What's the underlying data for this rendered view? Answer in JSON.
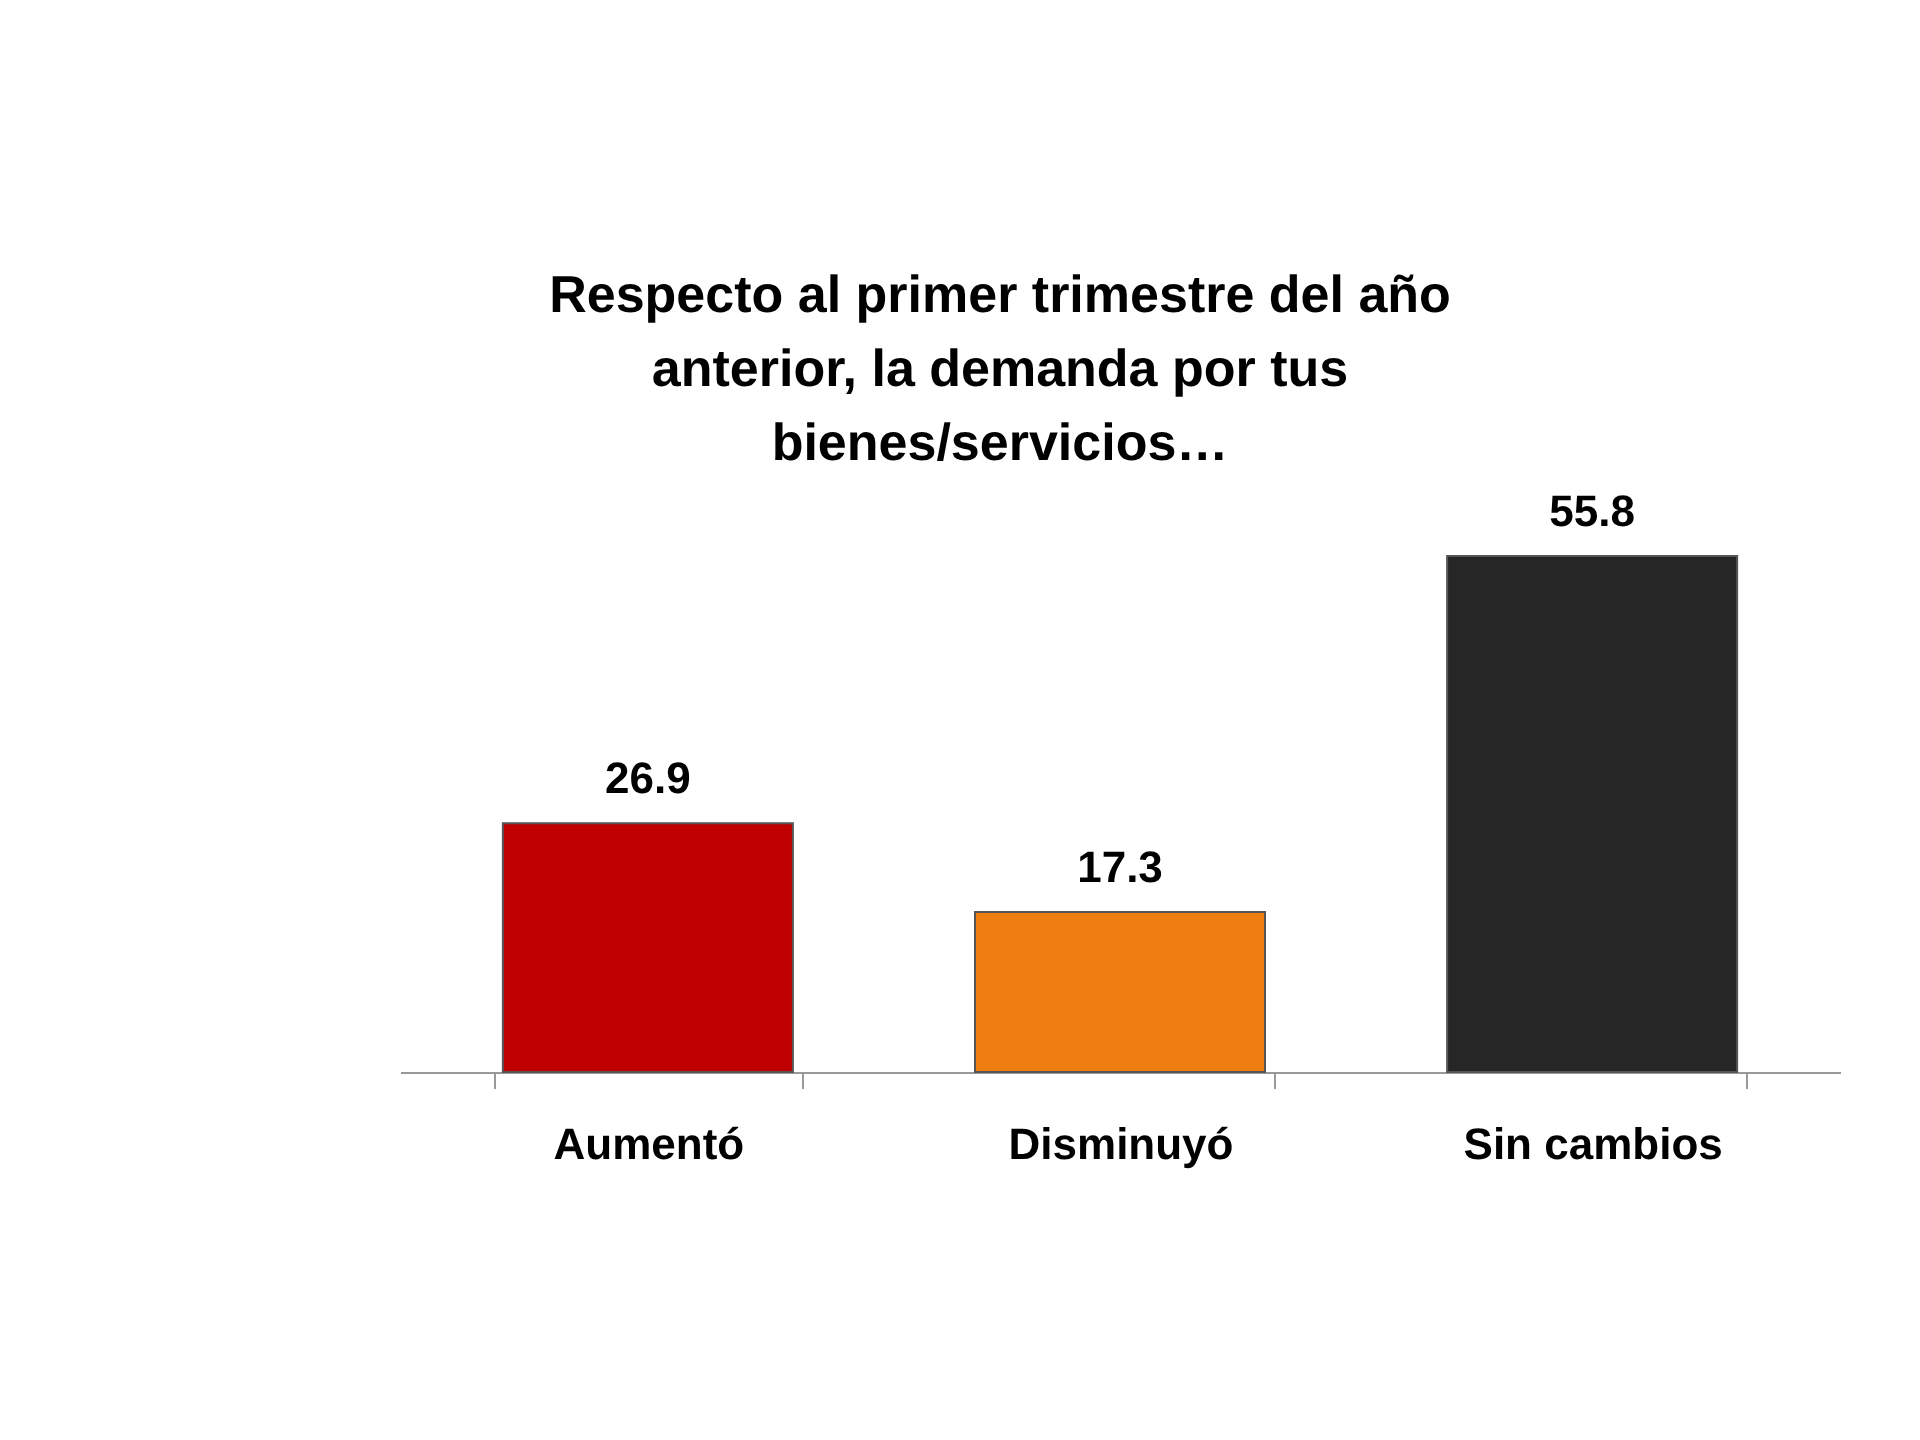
{
  "chart_data": {
    "type": "bar",
    "title": "Respecto al primer trimestre del año anterior, la demanda por tus bienes/servicios…",
    "categories": [
      "Aumentó",
      "Disminuyó",
      "Sin cambios"
    ],
    "values": [
      26.9,
      17.3,
      55.8
    ],
    "colors": [
      "#c00000",
      "#f07d10",
      "#262626"
    ],
    "data_labels": true,
    "grid": false
  }
}
